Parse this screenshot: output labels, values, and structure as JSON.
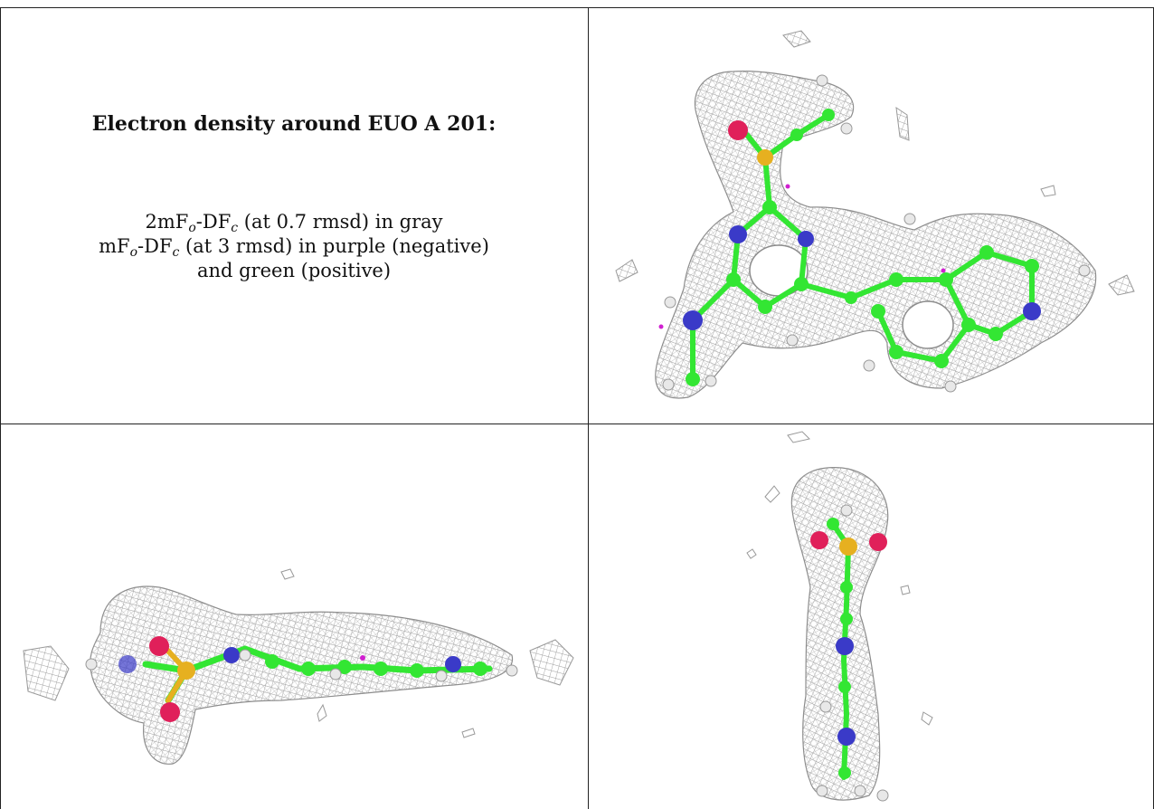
{
  "caption": {
    "title": "Electron density around EUO A 201:",
    "line1": {
      "pre": "2mF",
      "sub1": "o",
      "mid": "-DF",
      "sub2": "c",
      "post": " (at 0.7 rmsd) in gray"
    },
    "line2": {
      "pre": "mF",
      "sub1": "o",
      "mid": "-DF",
      "sub2": "c",
      "post": " (at 3 rmsd) in purple (negative)"
    },
    "line3": "and green (positive)"
  },
  "colors": {
    "mesh": "#a0a0a0",
    "carbon": "#33e633",
    "nitrogen": "#3a3ac8",
    "oxygen": "#e0205a",
    "sulfur": "#e6b020",
    "hydrogen": "#e8e8e8",
    "negative_density": "#d020d0"
  },
  "panels": [
    {
      "id": "view-top",
      "view": "face-on"
    },
    {
      "id": "view-side",
      "view": "edge-on horizontal"
    },
    {
      "id": "view-end",
      "view": "edge-on vertical"
    }
  ]
}
